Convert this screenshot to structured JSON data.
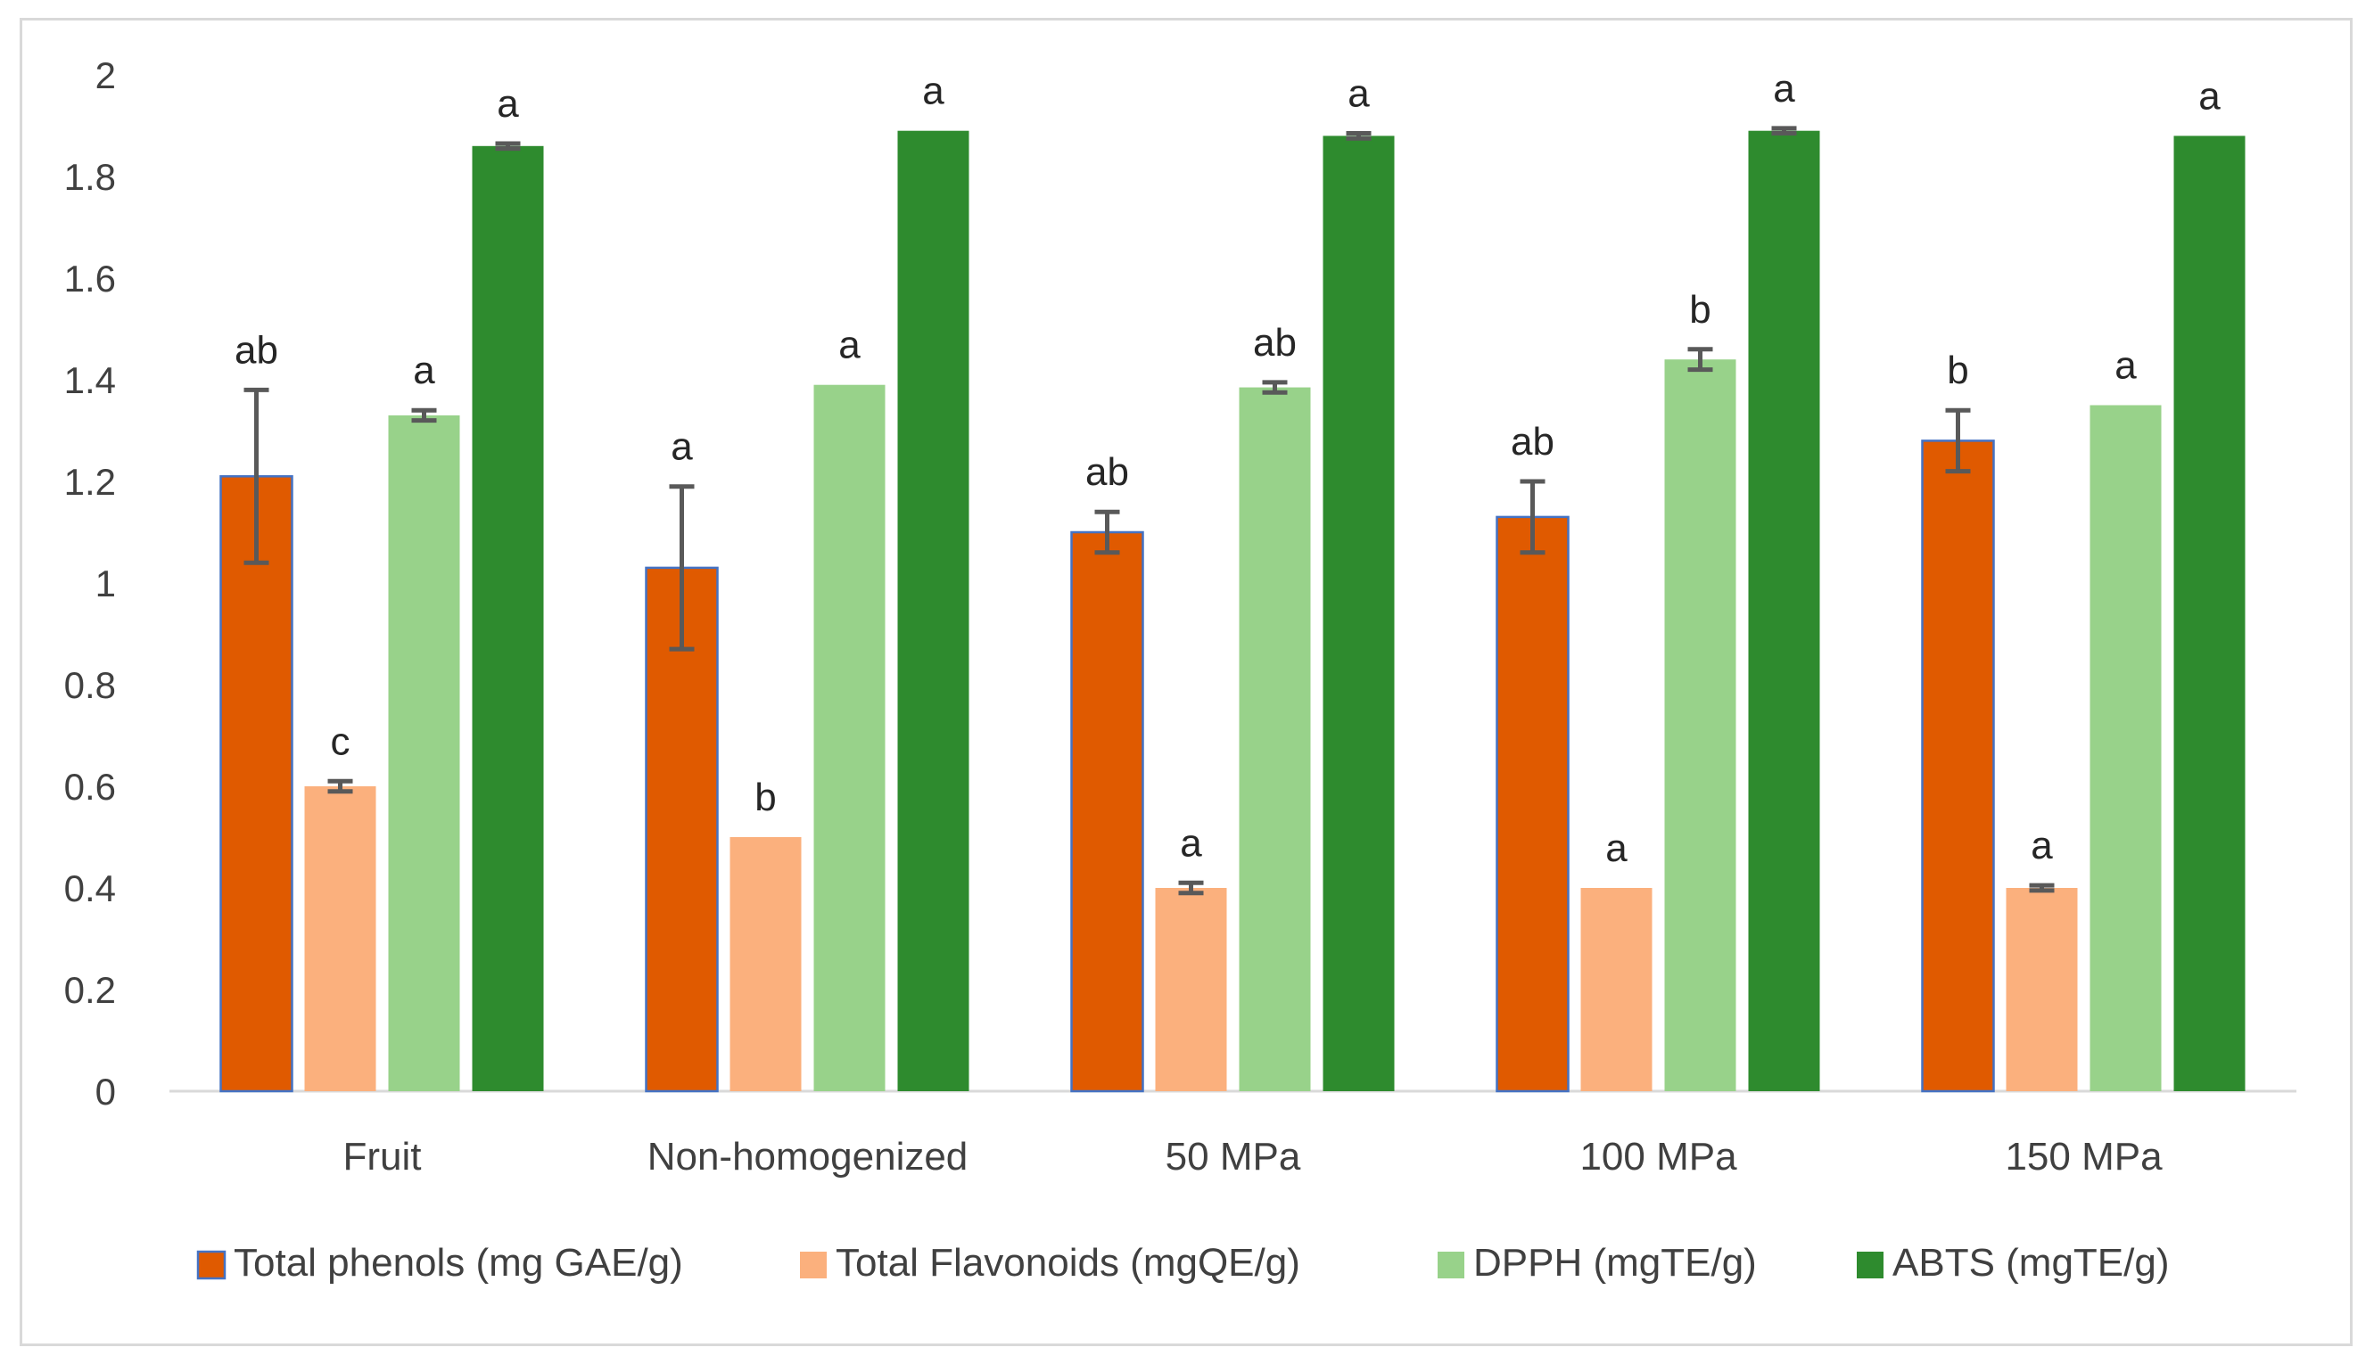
{
  "chart_data": {
    "type": "bar",
    "title": "",
    "xlabel": "",
    "ylabel": "",
    "ylim": [
      0,
      2
    ],
    "yticks": [
      "0",
      "0.2",
      "0.4",
      "0.6",
      "0.8",
      "1",
      "1.2",
      "1.4",
      "1.6",
      "1.8",
      "2"
    ],
    "grid": false,
    "legend_position": "bottom",
    "categories": [
      "Fruit",
      "Non-homogenized",
      "50 MPa",
      "100 MPa",
      "150 MPa"
    ],
    "series": [
      {
        "name": "Total phenols (mg GAE/g)",
        "color": "#E05A00",
        "border": "#4472C4",
        "values": [
          1.21,
          1.03,
          1.1,
          1.13,
          1.28
        ],
        "errors": [
          0.17,
          0.16,
          0.04,
          0.07,
          0.06
        ],
        "labels": [
          "ab",
          "a",
          "ab",
          "ab",
          "b"
        ]
      },
      {
        "name": "Total Flavonoids (mgQE/g)",
        "color": "#FBB07D",
        "values": [
          0.6,
          0.5,
          0.4,
          0.4,
          0.4
        ],
        "errors": [
          0.01,
          0.0,
          0.01,
          0.0,
          0.005
        ],
        "labels": [
          "c",
          "b",
          "a",
          "a",
          "a"
        ]
      },
      {
        "name": "DPPH (mgTE/g)",
        "color": "#98D28A",
        "values": [
          1.33,
          1.39,
          1.385,
          1.44,
          1.35
        ],
        "errors": [
          0.01,
          0.0,
          0.01,
          0.02,
          0.0
        ],
        "labels": [
          "a",
          "a",
          "ab",
          "b",
          "a"
        ]
      },
      {
        "name": "ABTS (mgTE/g)",
        "color": "#2E8B2E",
        "values": [
          1.86,
          1.89,
          1.88,
          1.89,
          1.88
        ],
        "errors": [
          0.005,
          0.0,
          0.005,
          0.005,
          0.0
        ],
        "labels": [
          "a",
          "a",
          "a",
          "a",
          "a"
        ]
      }
    ]
  }
}
